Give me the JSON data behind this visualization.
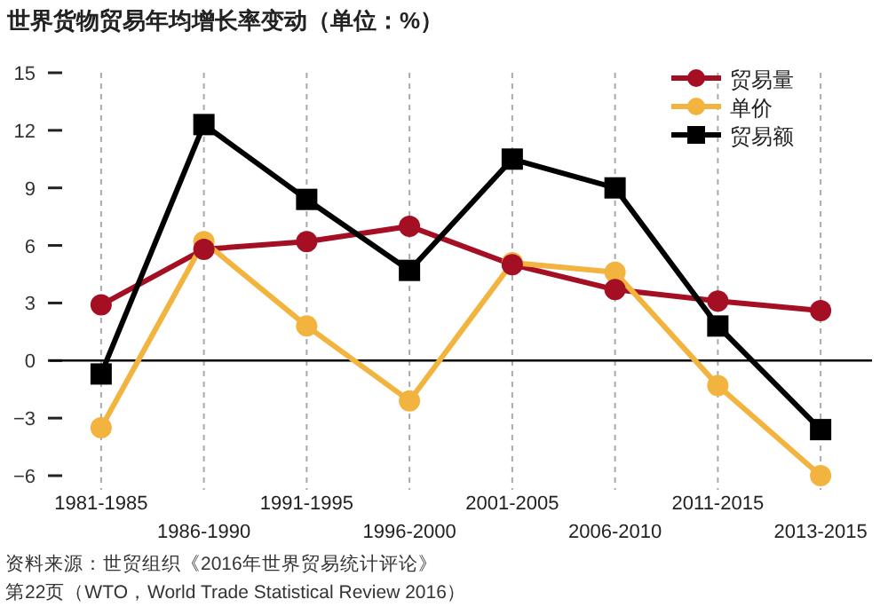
{
  "chart_data": {
    "type": "line",
    "title": "世界货物贸易年均增长率变动（单位：%）",
    "categories": [
      "1981-1985",
      "1986-1990",
      "1991-1995",
      "1996-2000",
      "2001-2005",
      "2006-2010",
      "2011-2015",
      "2013-2015"
    ],
    "series": [
      {
        "name": "贸易量",
        "color": "#a50f24",
        "marker": "circle",
        "values": [
          2.9,
          5.8,
          6.2,
          7.0,
          5.0,
          3.7,
          3.1,
          2.6
        ]
      },
      {
        "name": "单价",
        "color": "#f2b43e",
        "marker": "circle",
        "values": [
          -3.5,
          6.2,
          1.8,
          -2.1,
          5.1,
          4.6,
          -1.3,
          -6.0
        ]
      },
      {
        "name": "贸易额",
        "color": "#000000",
        "marker": "square",
        "values": [
          -0.7,
          12.3,
          8.4,
          4.7,
          10.5,
          9.0,
          1.8,
          -3.6
        ]
      }
    ],
    "ylim": [
      -6,
      15
    ],
    "yticks": [
      -6,
      -3,
      0,
      3,
      6,
      9,
      12,
      15
    ],
    "grid": "x",
    "legend": "top right",
    "ref_lines": [
      {
        "axis": "y",
        "value": 0,
        "color": "#000000"
      }
    ],
    "annotations": [
      "资料来源：世贸组织《2016年世界贸易统计评论》",
      "第22页（WTO，World Trade Statistical Review 2016）"
    ]
  }
}
